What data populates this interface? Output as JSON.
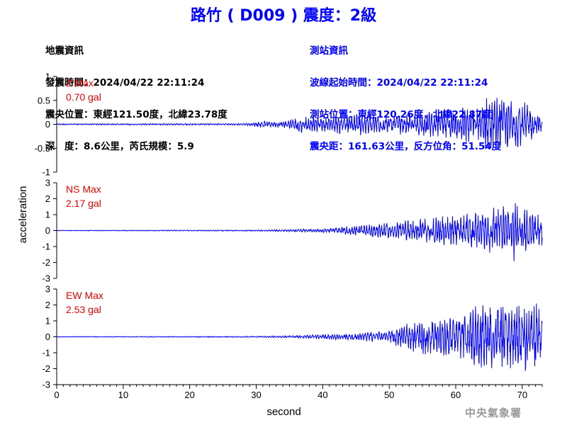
{
  "title": "路竹 ( D009 ) 震度：2級",
  "info_left": {
    "heading": "地震資訊",
    "time": "發震時間：2024/04/22 22:11:24",
    "location": "震央位置：東經121.50度，北緯23.78度",
    "depth": "深　度：8.6公里，芮氏規模：5.9"
  },
  "info_right": {
    "heading": "測站資訊",
    "wave_start": "波線起始時間：2024/04/22 22:11:24",
    "station_location": "測站位置：東經120.26度，北緯22.87度",
    "distance": "震央距：161.63公里，反方位角：51.54度"
  },
  "footer": "中央氣象署",
  "colors": {
    "trace": "#0000ff",
    "max_label": "#ee0000",
    "title": "#0000ff",
    "axis": "#000000"
  },
  "chart_data": {
    "type": "line",
    "xlabel": "second",
    "ylabel": "acceleration",
    "xlim": [
      0,
      73
    ],
    "x_ticks": [
      0,
      10,
      20,
      30,
      40,
      50,
      60,
      70
    ],
    "grid": false,
    "panels": [
      {
        "name": "Z",
        "max_label": "Z Max",
        "max_value": "0.70 gal",
        "ylim": [
          -1,
          1
        ],
        "y_ticks": [
          -1,
          -0.5,
          0,
          0.5,
          1
        ],
        "y_tick_labels": [
          "-1",
          "-0.5",
          "0",
          "0.5",
          "1"
        ],
        "envelope": {
          "t": [
            0,
            28,
            30,
            31,
            32,
            33,
            35,
            36,
            40,
            45,
            50,
            55,
            60,
            63,
            65,
            68,
            70,
            73
          ],
          "amp": [
            0.015,
            0.02,
            0.05,
            0.08,
            0.06,
            0.06,
            0.1,
            0.2,
            0.15,
            0.25,
            0.2,
            0.25,
            0.35,
            0.45,
            0.6,
            0.55,
            0.5,
            0.15
          ]
        }
      },
      {
        "name": "NS",
        "max_label": "NS Max",
        "max_value": "2.17 gal",
        "ylim": [
          -3,
          3
        ],
        "y_ticks": [
          -3,
          -2,
          -1,
          0,
          1,
          2,
          3
        ],
        "y_tick_labels": [
          "-3",
          "-2",
          "-1",
          "0",
          "1",
          "2",
          "3"
        ],
        "envelope": {
          "t": [
            0,
            30,
            35,
            40,
            44,
            48,
            50,
            55,
            60,
            63,
            65,
            68,
            69,
            70,
            71,
            73
          ],
          "amp": [
            0.02,
            0.04,
            0.08,
            0.12,
            0.3,
            0.45,
            0.5,
            0.8,
            1.0,
            1.2,
            1.5,
            1.6,
            2.1,
            1.9,
            1.2,
            1.0
          ]
        }
      },
      {
        "name": "EW",
        "max_label": "EW Max",
        "max_value": "2.53 gal",
        "ylim": [
          -3,
          3
        ],
        "y_ticks": [
          -3,
          -2,
          -1,
          0,
          1,
          2,
          3
        ],
        "y_tick_labels": [
          "-3",
          "-2",
          "-1",
          "0",
          "1",
          "2",
          "3"
        ],
        "envelope": {
          "t": [
            0,
            30,
            35,
            40,
            45,
            50,
            53,
            55,
            58,
            60,
            62,
            65,
            68,
            70,
            72,
            73
          ],
          "amp": [
            0.02,
            0.04,
            0.08,
            0.15,
            0.25,
            0.4,
            0.9,
            1.1,
            1.3,
            1.2,
            1.8,
            2.3,
            2.0,
            2.2,
            2.4,
            1.4
          ]
        }
      }
    ]
  }
}
